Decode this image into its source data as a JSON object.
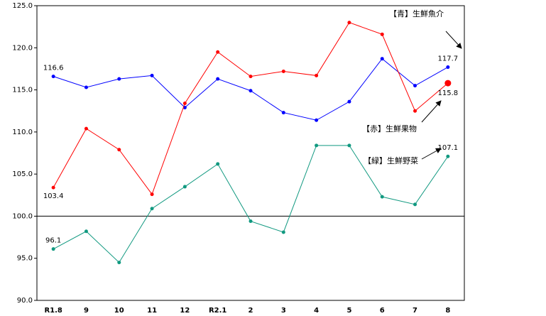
{
  "chart_data": {
    "type": "line",
    "categories": [
      "R1.8",
      "9",
      "10",
      "11",
      "12",
      "R2.1",
      "2",
      "3",
      "4",
      "5",
      "6",
      "7",
      "8"
    ],
    "series": [
      {
        "name": "【青】生鮮魚介",
        "color": "#0000ff",
        "values": [
          116.6,
          115.3,
          116.3,
          116.7,
          112.9,
          116.3,
          114.9,
          112.3,
          111.4,
          113.6,
          118.7,
          115.5,
          117.7
        ]
      },
      {
        "name": "【赤】生鮮果物",
        "color": "#ff0000",
        "values": [
          103.4,
          110.4,
          107.9,
          102.6,
          113.4,
          119.5,
          116.6,
          117.2,
          116.7,
          123.0,
          121.6,
          112.5,
          115.8
        ]
      },
      {
        "name": "【緑】生鮮野菜",
        "color": "#119980",
        "values": [
          96.1,
          98.2,
          94.5,
          100.9,
          103.5,
          106.2,
          99.4,
          98.1,
          108.4,
          108.4,
          102.3,
          101.4,
          107.1
        ]
      }
    ],
    "ylim": [
      90,
      125
    ],
    "yticks": [
      {
        "value": 90,
        "label": "90.0"
      },
      {
        "value": 95,
        "label": "95.0"
      },
      {
        "value": 100,
        "label": "100.0"
      },
      {
        "value": 105,
        "label": "105.0"
      },
      {
        "value": 110,
        "label": "110.0"
      },
      {
        "value": 115,
        "label": "115.0"
      },
      {
        "value": 120,
        "label": "120.0"
      },
      {
        "value": 125,
        "label": "125.0"
      }
    ],
    "reference_line": 100
  }
}
